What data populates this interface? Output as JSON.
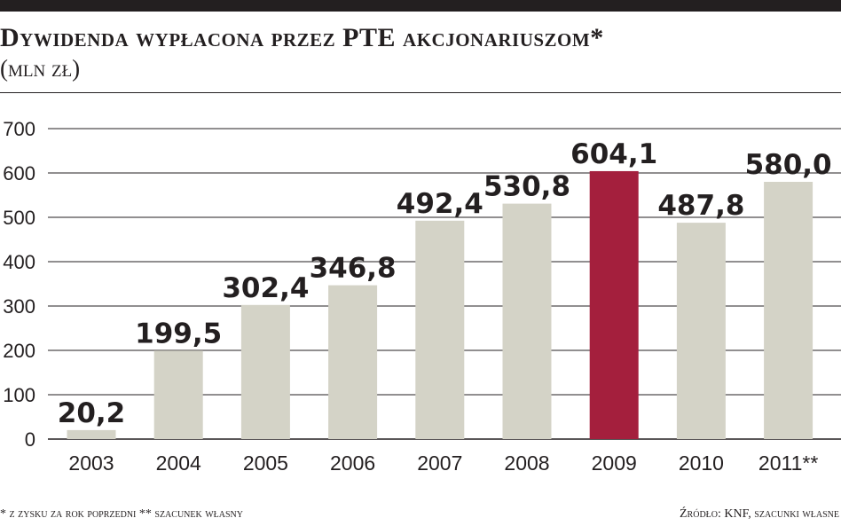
{
  "header": {
    "title": "Dywidenda wypłacona przez PTE akcjonariuszom*",
    "subtitle": "(mln zł)"
  },
  "footer": {
    "note": "* z zysku za rok poprzedni ** szacunek własny",
    "source": "Źródło: KNF, szacunki własne"
  },
  "colors": {
    "bar": "#d4d3c7",
    "highlight": "#a41f3d",
    "grid": "#231f20",
    "text": "#231f20"
  },
  "chart_data": {
    "type": "bar",
    "title": "Dywidenda wypłacona przez PTE akcjonariuszom*",
    "subtitle": "(mln zł)",
    "xlabel": "",
    "ylabel": "",
    "categories": [
      "2003",
      "2004",
      "2005",
      "2006",
      "2007",
      "2008",
      "2009",
      "2010",
      "2011**"
    ],
    "values": [
      20.2,
      199.5,
      302.4,
      346.8,
      492.4,
      530.8,
      604.1,
      487.8,
      580.0
    ],
    "value_labels": [
      "20,2",
      "199,5",
      "302,4",
      "346,8",
      "492,4",
      "530,8",
      "604,1",
      "487,8",
      "580,0"
    ],
    "highlight_category": "2009",
    "ylim": [
      0,
      700
    ],
    "yticks": [
      0,
      100,
      200,
      300,
      400,
      500,
      600,
      700
    ],
    "grid": true,
    "legend": "none"
  }
}
